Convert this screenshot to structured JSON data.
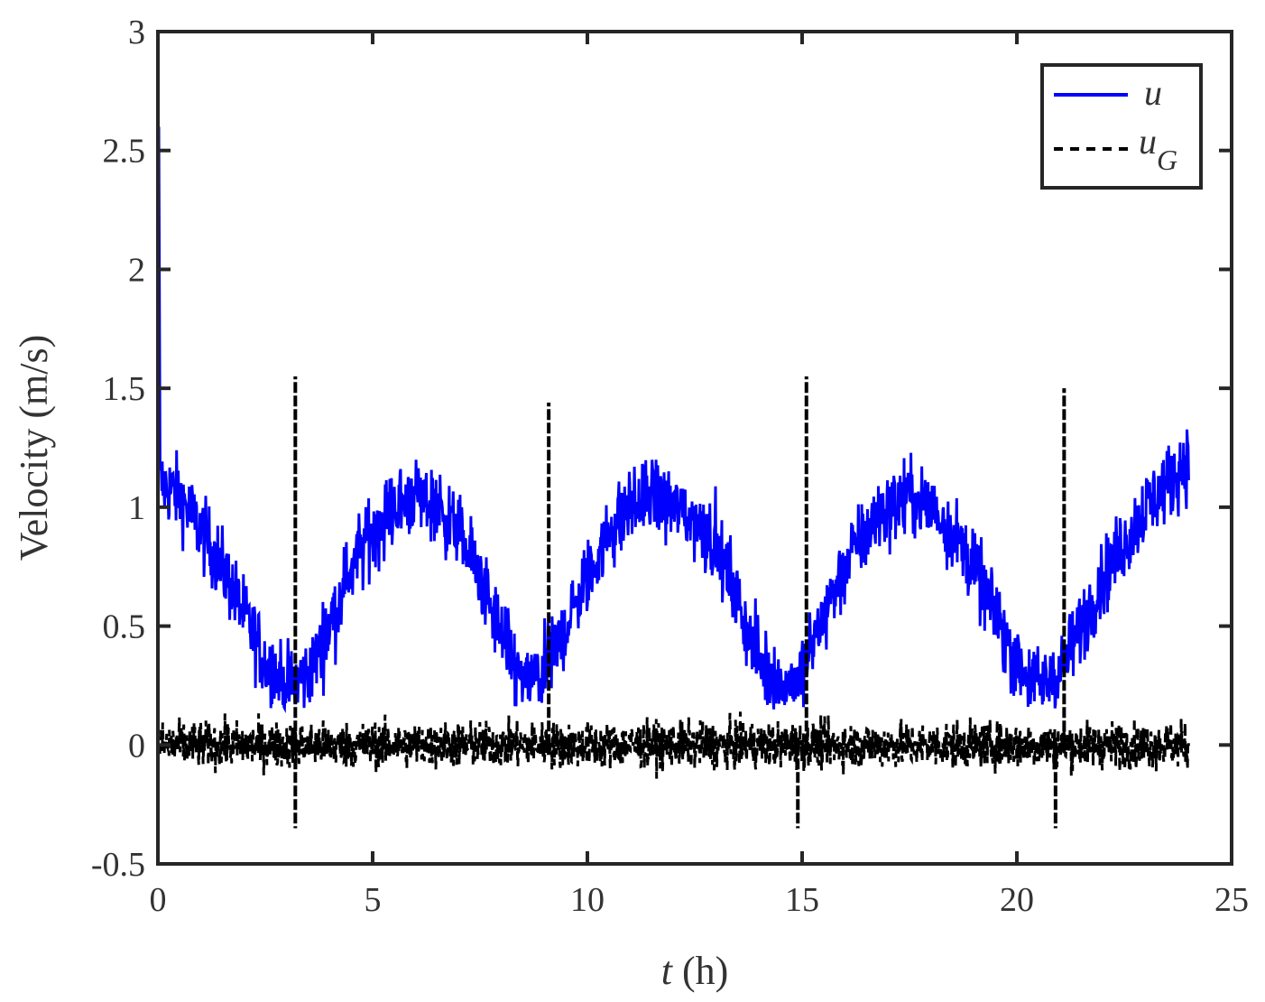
{
  "chart_data": {
    "type": "line",
    "title": "",
    "xlabel_var": "t",
    "xlabel_unit": " (h)",
    "ylabel": "Velocity (m/s)",
    "xlim": [
      0,
      25
    ],
    "ylim": [
      -0.5,
      3
    ],
    "xticks": [
      0,
      5,
      10,
      15,
      20,
      25
    ],
    "xtick_labels": [
      "0",
      "5",
      "10",
      "15",
      "20",
      "25"
    ],
    "yticks": [
      -0.5,
      0,
      0.5,
      1,
      1.5,
      2,
      2.5,
      3
    ],
    "ytick_labels": [
      "-0.5",
      "0",
      "0.5",
      "1",
      "1.5",
      "2",
      "2.5",
      "3"
    ],
    "grid": false,
    "legend_position": "top-right",
    "series": [
      {
        "name": "u",
        "legend_main": "u",
        "legend_sub": "",
        "style": "solid",
        "color": "#0000ff",
        "description_points": {
          "x": [
            0,
            0.05,
            0.5,
            1,
            1.5,
            2,
            2.5,
            3,
            3.5,
            4,
            4.5,
            5,
            5.5,
            6,
            6.5,
            7,
            7.5,
            8,
            8.5,
            9,
            9.5,
            10,
            10.5,
            11,
            11.5,
            12,
            12.5,
            13,
            13.5,
            14,
            14.5,
            15,
            15.5,
            16,
            16.5,
            17,
            17.5,
            18,
            18.5,
            19,
            19.5,
            20,
            20.5,
            21,
            21.5,
            22,
            22.5,
            23,
            23.5,
            24
          ],
          "y": [
            2.6,
            1.1,
            1.05,
            0.9,
            0.75,
            0.55,
            0.35,
            0.25,
            0.3,
            0.5,
            0.75,
            0.9,
            1.0,
            1.05,
            1.0,
            0.9,
            0.7,
            0.45,
            0.25,
            0.3,
            0.5,
            0.7,
            0.9,
            1.0,
            1.05,
            1.0,
            0.95,
            0.85,
            0.6,
            0.35,
            0.25,
            0.3,
            0.55,
            0.75,
            0.9,
            1.0,
            1.05,
            1.0,
            0.9,
            0.75,
            0.55,
            0.35,
            0.25,
            0.3,
            0.5,
            0.7,
            0.85,
            1.0,
            1.1,
            1.2
          ]
        },
        "noise_amplitude": 0.25
      },
      {
        "name": "uG",
        "legend_main": "u",
        "legend_sub": "G",
        "style": "dashed",
        "color": "#000000",
        "mean": 0,
        "noise_amplitude": 0.18,
        "spikes": [
          {
            "x": 3.2,
            "y": 1.55
          },
          {
            "x": 9.1,
            "y": 1.44
          },
          {
            "x": 15.1,
            "y": 1.55
          },
          {
            "x": 21.1,
            "y": 1.5
          },
          {
            "x": 3.2,
            "y": -0.35
          },
          {
            "x": 14.9,
            "y": -0.35
          },
          {
            "x": 20.9,
            "y": -0.35
          }
        ]
      }
    ],
    "x_end": 24
  }
}
